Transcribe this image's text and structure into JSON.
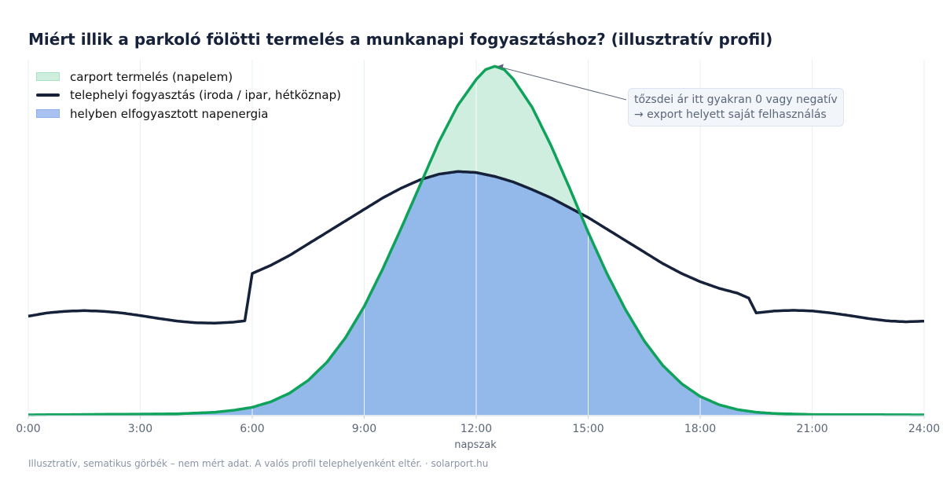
{
  "title": "Miért illik a parkoló fölötti termelés a munkanapi fogyasztáshoz? (illusztratív profil)",
  "legend": {
    "production": "carport termelés (napelem)",
    "consumption": "telephelyi fogyasztás (iroda / ipar, hétköznap)",
    "self_consumed": "helyben elfogyasztott napenergia"
  },
  "annotation": {
    "line1": "tőzsdei ár itt gyakran 0 vagy negatív",
    "line2": "→ export helyett saját felhasználás"
  },
  "footer": "Illusztratív, sematikus görbék – nem mért adat. A valós profil telephelyenként eltér. · solarport.hu",
  "colors": {
    "production_line": "#0ea25a",
    "production_fill": "#d0eedf",
    "consumption_line": "#16213a",
    "self_consumed_fill": "#92b9ea",
    "grid": "#e5f2ef",
    "axis_text": "#5b6678"
  },
  "chart_data": {
    "type": "area",
    "title": "Miért illik a parkoló fölötti termelés a munkanapi fogyasztáshoz? (illusztratív profil)",
    "xlabel": "napszak",
    "ylabel": "",
    "xlim": [
      0,
      24
    ],
    "ylim": [
      0,
      1.08
    ],
    "x_ticks": [
      0,
      3,
      6,
      9,
      12,
      15,
      18,
      21,
      24
    ],
    "x_tick_labels": [
      "0:00",
      "3:00",
      "6:00",
      "9:00",
      "12:00",
      "15:00",
      "18:00",
      "21:00",
      "24:00"
    ],
    "grid": "vertical",
    "legend_position": "top-left",
    "series": [
      {
        "name": "carport termelés (napelem)",
        "x": [
          0,
          4,
          5,
          5.5,
          6,
          6.5,
          7,
          7.5,
          8,
          8.5,
          9,
          9.5,
          10,
          10.5,
          11,
          11.5,
          12,
          12.25,
          12.5,
          12.75,
          13,
          13.5,
          14,
          14.5,
          15,
          15.5,
          16,
          16.5,
          17,
          17.5,
          18,
          18.5,
          19,
          19.5,
          20,
          21,
          24
        ],
        "values": [
          0,
          0.003,
          0.008,
          0.014,
          0.023,
          0.04,
          0.066,
          0.105,
          0.16,
          0.235,
          0.33,
          0.445,
          0.57,
          0.7,
          0.83,
          0.94,
          1.02,
          1.05,
          1.06,
          1.05,
          1.02,
          0.935,
          0.82,
          0.69,
          0.555,
          0.43,
          0.32,
          0.225,
          0.15,
          0.095,
          0.056,
          0.031,
          0.016,
          0.008,
          0.004,
          0.001,
          0
        ]
      },
      {
        "name": "telephelyi fogyasztás (iroda / ipar, hétköznap)",
        "x": [
          0,
          0.5,
          1,
          1.5,
          2,
          2.5,
          3,
          3.5,
          4,
          4.5,
          5,
          5.5,
          5.8,
          6,
          6.5,
          7,
          7.5,
          8,
          8.5,
          9,
          9.5,
          10,
          10.5,
          11,
          11.5,
          12,
          12.5,
          13,
          13.5,
          14,
          14.5,
          15,
          15.5,
          16,
          16.5,
          17,
          17.5,
          18,
          18.5,
          19,
          19.3,
          19.5,
          20,
          20.5,
          21,
          21.5,
          22,
          22.5,
          23,
          23.5,
          24
        ],
        "values": [
          0.3,
          0.31,
          0.315,
          0.317,
          0.315,
          0.31,
          0.302,
          0.293,
          0.285,
          0.28,
          0.279,
          0.282,
          0.286,
          0.43,
          0.455,
          0.485,
          0.52,
          0.555,
          0.59,
          0.625,
          0.66,
          0.69,
          0.715,
          0.732,
          0.74,
          0.737,
          0.725,
          0.708,
          0.685,
          0.66,
          0.63,
          0.6,
          0.565,
          0.53,
          0.495,
          0.46,
          0.43,
          0.405,
          0.385,
          0.37,
          0.355,
          0.31,
          0.316,
          0.318,
          0.316,
          0.31,
          0.302,
          0.293,
          0.286,
          0.283,
          0.285
        ]
      }
    ],
    "derived_area": "helyben elfogyasztott napenergia = min(termelés, fogyasztás)",
    "annotations": [
      {
        "text": "tőzsdei ár itt gyakran 0 vagy negatív\n→ export helyett saját felhasználás",
        "x": 12.5,
        "y": 1.06
      }
    ]
  }
}
